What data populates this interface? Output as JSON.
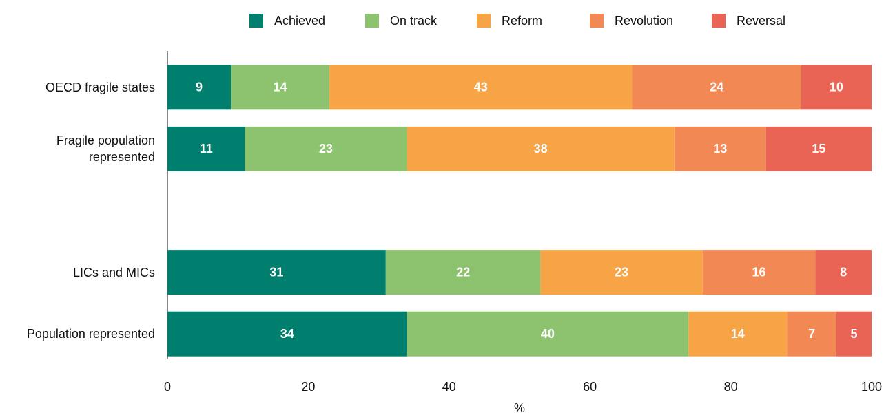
{
  "chart_data": {
    "type": "stacked_bar_horizontal",
    "categories": [
      "OECD fragile states",
      "Fragile population represented",
      null,
      "LICs and MICs",
      "Population represented"
    ],
    "series": [
      {
        "name": "Achieved",
        "color": "#007f6e",
        "values": [
          9,
          11,
          null,
          31,
          34
        ]
      },
      {
        "name": "On track",
        "color": "#8dc26f",
        "values": [
          14,
          23,
          null,
          22,
          40
        ]
      },
      {
        "name": "Reform",
        "color": "#f6a446",
        "values": [
          43,
          38,
          null,
          23,
          14
        ]
      },
      {
        "name": "Revolution",
        "color": "#f28954",
        "values": [
          24,
          13,
          null,
          16,
          7
        ]
      },
      {
        "name": "Reversal",
        "color": "#e96455",
        "values": [
          10,
          15,
          null,
          8,
          5
        ]
      }
    ],
    "xlabel": "%",
    "xlim": [
      0,
      100
    ],
    "xticks": [
      0,
      20,
      40,
      60,
      80,
      100
    ],
    "legend": "top"
  }
}
